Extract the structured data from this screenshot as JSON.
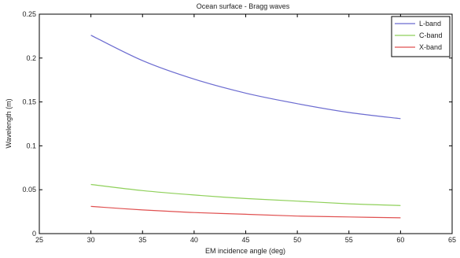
{
  "chart_data": {
    "type": "line",
    "title": "Ocean surface - Bragg waves",
    "xlabel": "EM incidence angle (deg)",
    "ylabel": "Wavelength (m)",
    "xlim": [
      25,
      65
    ],
    "ylim": [
      0,
      0.25
    ],
    "x_ticks": [
      "25",
      "30",
      "35",
      "40",
      "45",
      "50",
      "55",
      "60",
      "65"
    ],
    "y_ticks": [
      "0",
      "0.05",
      "0.1",
      "0.15",
      "0.2",
      "0.25"
    ],
    "grid": false,
    "legend_position": "top-right",
    "x": [
      30,
      35,
      40,
      45,
      50,
      55,
      60
    ],
    "series": [
      {
        "name": "L-band",
        "color": "#6b6bd0",
        "values": [
          0.226,
          0.197,
          0.176,
          0.16,
          0.148,
          0.138,
          0.131
        ]
      },
      {
        "name": "C-band",
        "color": "#8fd05a",
        "values": [
          0.056,
          0.049,
          0.044,
          0.04,
          0.037,
          0.034,
          0.032
        ]
      },
      {
        "name": "X-band",
        "color": "#e05050",
        "values": [
          0.031,
          0.027,
          0.024,
          0.022,
          0.02,
          0.019,
          0.018
        ]
      }
    ]
  }
}
